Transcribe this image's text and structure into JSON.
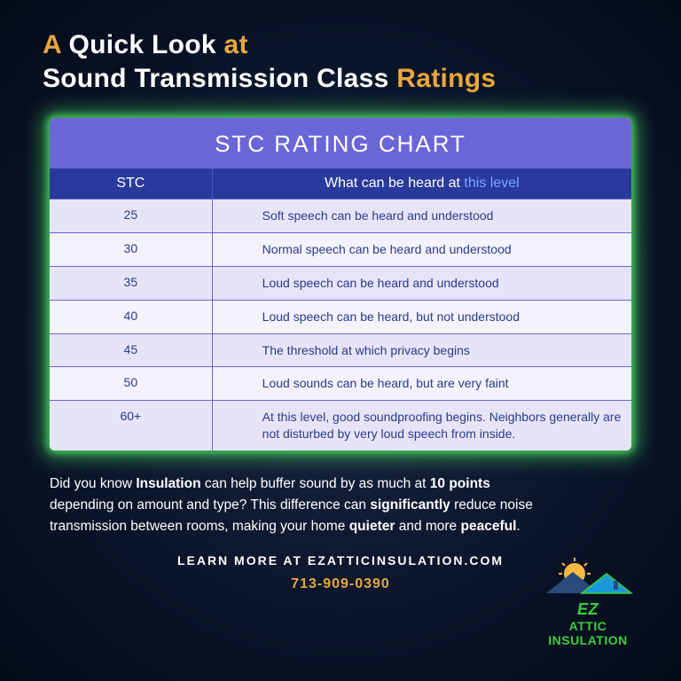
{
  "title": {
    "parts": [
      {
        "text": "A",
        "color": "yellow"
      },
      {
        "text": " Quick Look ",
        "color": "white"
      },
      {
        "text": "at",
        "color": "yellow"
      },
      {
        "text": "\nSound Transmission Class ",
        "color": "white"
      },
      {
        "text": "Ratings",
        "color": "yellow"
      }
    ]
  },
  "chart": {
    "type": "table",
    "header": "STC RATING CHART",
    "header_bg": "#6b66d8",
    "header_color": "#ffffff",
    "colheader_bg": "#2a3a9c",
    "colheader_color": "#ffffff",
    "link_color": "#7aa8ff",
    "row_odd_bg": "#e8e4f8",
    "row_even_bg": "#f4f2fb",
    "border_color": "#6b66d8",
    "text_color": "#2a3a8c",
    "glow_color": "#50e664",
    "col1_width_pct": 28,
    "col2_width_pct": 72,
    "fontsize_header": 26,
    "fontsize_colheader": 16,
    "fontsize_cell": 14,
    "columns": {
      "col1": "STC",
      "col2_prefix": "What can be heard at ",
      "col2_link": "this level"
    },
    "rows": [
      {
        "stc": "25",
        "desc": "Soft speech can be heard and understood"
      },
      {
        "stc": "30",
        "desc": "Normal speech can be heard and understood"
      },
      {
        "stc": "35",
        "desc": "Loud speech can be heard and understood"
      },
      {
        "stc": "40",
        "desc": "Loud speech can be heard, but not understood"
      },
      {
        "stc": "45",
        "desc": "The threshold at which privacy begins"
      },
      {
        "stc": "50",
        "desc": "Loud sounds can be heard, but are very faint"
      },
      {
        "stc": "60+",
        "desc": "At this level, good soundproofing begins. Neighbors generally are not disturbed by very loud speech from inside."
      }
    ]
  },
  "body": {
    "html": "Did you know <b>Insulation</b> can help buffer sound by as much at <b>10 points</b> depending on amount and type? This difference can <b>significantly</b> reduce noise transmission between rooms, making your home <b>quieter</b> and more <b>peaceful</b>."
  },
  "learn_more": "LEARN MORE AT EZATTICINSULATION.COM",
  "phone": "713-909-0390",
  "logo": {
    "ez": "EZ",
    "attic": "ATTIC INSULATION",
    "sun_color": "#f5b942",
    "mountain_color": "#2a4a7c",
    "roof_color": "#1a9bd8",
    "text_color": "#3bcf3b"
  },
  "colors": {
    "background_inner": "#1a2845",
    "background_outer": "#050a18",
    "yellow": "#e8a73d",
    "white": "#ffffff"
  }
}
